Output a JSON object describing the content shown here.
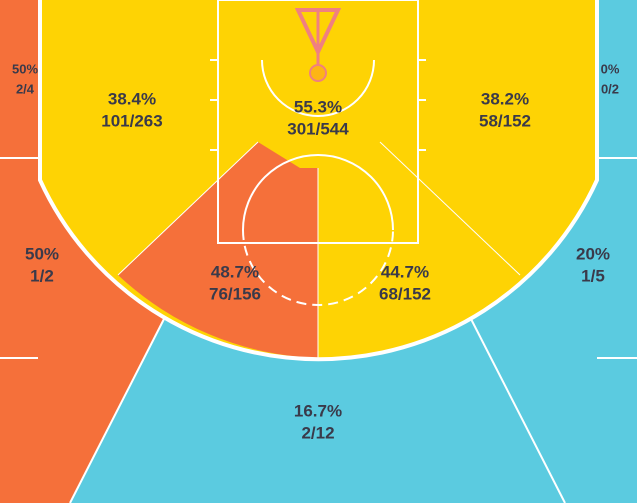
{
  "zones": [
    {
      "pct": "50%",
      "shots": "2/4"
    },
    {
      "pct": "38.4%",
      "shots": "101/263"
    },
    {
      "pct": "55.3%",
      "shots": "301/544"
    },
    {
      "pct": "38.2%",
      "shots": "58/152"
    },
    {
      "pct": "0%",
      "shots": "0/2"
    },
    {
      "pct": "50%",
      "shots": "1/2"
    },
    {
      "pct": "48.7%",
      "shots": "76/156"
    },
    {
      "pct": "44.7%",
      "shots": "68/152"
    },
    {
      "pct": "20%",
      "shots": "1/5"
    },
    {
      "pct": "16.7%",
      "shots": "2/12"
    }
  ]
}
